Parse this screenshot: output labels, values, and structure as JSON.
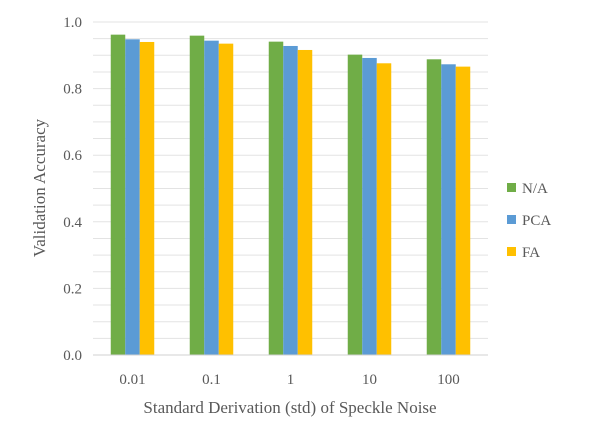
{
  "chart_data": {
    "type": "bar",
    "title": "",
    "xlabel": "Standard Derivation (std) of Speckle Noise",
    "ylabel": "Validation Accuracy",
    "categories": [
      "0.01",
      "0.1",
      "1",
      "10",
      "100"
    ],
    "ylim": [
      0,
      1.0
    ],
    "yticks": [
      "0.0",
      "0.2",
      "0.4",
      "0.6",
      "0.8",
      "1.0"
    ],
    "grid": true,
    "legend_position": "right",
    "series": [
      {
        "name": "N/A",
        "color": "#70ad47",
        "values": [
          0.962,
          0.959,
          0.941,
          0.902,
          0.888
        ]
      },
      {
        "name": "PCA",
        "color": "#5b9bd5",
        "values": [
          0.948,
          0.944,
          0.928,
          0.892,
          0.873
        ]
      },
      {
        "name": "FA",
        "color": "#ffc000",
        "values": [
          0.94,
          0.935,
          0.916,
          0.876,
          0.866
        ]
      }
    ]
  }
}
